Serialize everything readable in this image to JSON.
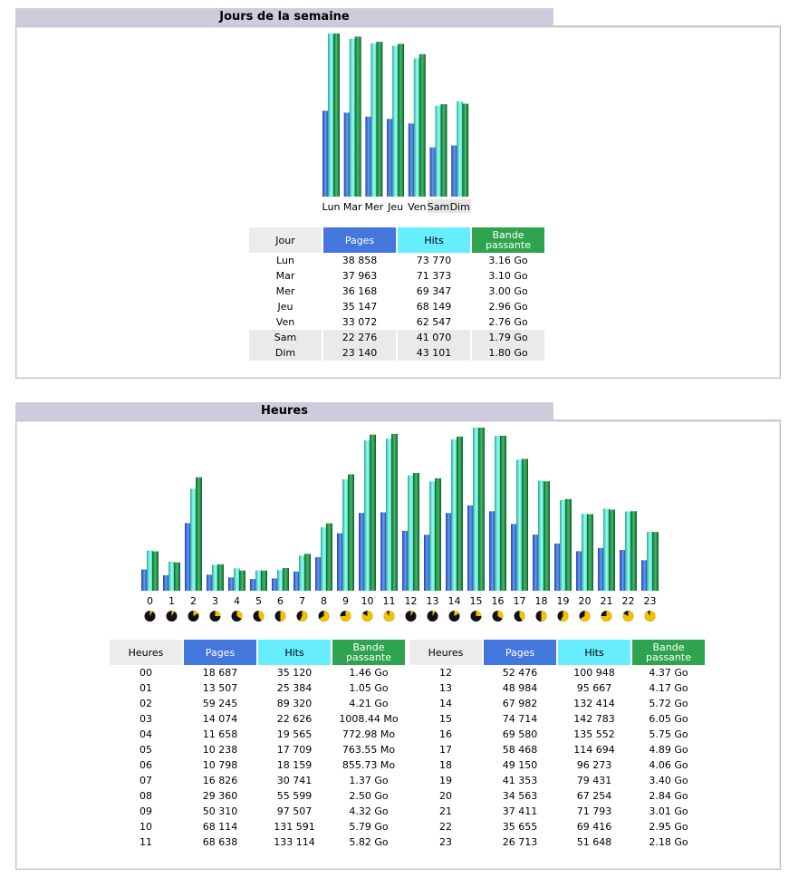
{
  "days_section": {
    "title": "Jours de la semaine",
    "headers": {
      "label": "Jour",
      "pages": "Pages",
      "hits": "Hits",
      "bw": "Bande passante"
    },
    "rows": [
      {
        "label": "Lun",
        "pages": "38 858",
        "hits": "73 770",
        "bw": "3.16 Go",
        "weekend": false
      },
      {
        "label": "Mar",
        "pages": "37 963",
        "hits": "71 373",
        "bw": "3.10 Go",
        "weekend": false
      },
      {
        "label": "Mer",
        "pages": "36 168",
        "hits": "69 347",
        "bw": "3.00 Go",
        "weekend": false
      },
      {
        "label": "Jeu",
        "pages": "35 147",
        "hits": "68 149",
        "bw": "2.96 Go",
        "weekend": false
      },
      {
        "label": "Ven",
        "pages": "33 072",
        "hits": "62 547",
        "bw": "2.76 Go",
        "weekend": false
      },
      {
        "label": "Sam",
        "pages": "22 276",
        "hits": "41 070",
        "bw": "1.79 Go",
        "weekend": true
      },
      {
        "label": "Dim",
        "pages": "23 140",
        "hits": "43 101",
        "bw": "1.80 Go",
        "weekend": true
      }
    ]
  },
  "hours_section": {
    "title": "Heures",
    "headers": {
      "label": "Heures",
      "pages": "Pages",
      "hits": "Hits",
      "bw": "Bande passante"
    },
    "rows_left": [
      {
        "label": "00",
        "pages": "18 687",
        "hits": "35 120",
        "bw": "1.46 Go"
      },
      {
        "label": "01",
        "pages": "13 507",
        "hits": "25 384",
        "bw": "1.05 Go"
      },
      {
        "label": "02",
        "pages": "59 245",
        "hits": "89 320",
        "bw": "4.21 Go"
      },
      {
        "label": "03",
        "pages": "14 074",
        "hits": "22 626",
        "bw": "1008.44 Mo"
      },
      {
        "label": "04",
        "pages": "11 658",
        "hits": "19 565",
        "bw": "772.98 Mo"
      },
      {
        "label": "05",
        "pages": "10 238",
        "hits": "17 709",
        "bw": "763.55 Mo"
      },
      {
        "label": "06",
        "pages": "10 798",
        "hits": "18 159",
        "bw": "855.73 Mo"
      },
      {
        "label": "07",
        "pages": "16 826",
        "hits": "30 741",
        "bw": "1.37 Go"
      },
      {
        "label": "08",
        "pages": "29 360",
        "hits": "55 599",
        "bw": "2.50 Go"
      },
      {
        "label": "09",
        "pages": "50 310",
        "hits": "97 507",
        "bw": "4.32 Go"
      },
      {
        "label": "10",
        "pages": "68 114",
        "hits": "131 591",
        "bw": "5.79 Go"
      },
      {
        "label": "11",
        "pages": "68 638",
        "hits": "133 114",
        "bw": "5.82 Go"
      }
    ],
    "rows_right": [
      {
        "label": "12",
        "pages": "52 476",
        "hits": "100 948",
        "bw": "4.37 Go"
      },
      {
        "label": "13",
        "pages": "48 984",
        "hits": "95 667",
        "bw": "4.17 Go"
      },
      {
        "label": "14",
        "pages": "67 982",
        "hits": "132 414",
        "bw": "5.72 Go"
      },
      {
        "label": "15",
        "pages": "74 714",
        "hits": "142 783",
        "bw": "6.05 Go"
      },
      {
        "label": "16",
        "pages": "69 580",
        "hits": "135 552",
        "bw": "5.75 Go"
      },
      {
        "label": "17",
        "pages": "58 468",
        "hits": "114 694",
        "bw": "4.89 Go"
      },
      {
        "label": "18",
        "pages": "49 150",
        "hits": "96 273",
        "bw": "4.06 Go"
      },
      {
        "label": "19",
        "pages": "41 353",
        "hits": "79 431",
        "bw": "3.40 Go"
      },
      {
        "label": "20",
        "pages": "34 563",
        "hits": "67 254",
        "bw": "2.84 Go"
      },
      {
        "label": "21",
        "pages": "37 411",
        "hits": "71 793",
        "bw": "3.01 Go"
      },
      {
        "label": "22",
        "pages": "35 655",
        "hits": "69 416",
        "bw": "2.95 Go"
      },
      {
        "label": "23",
        "pages": "26 713",
        "hits": "51 648",
        "bw": "2.18 Go"
      }
    ]
  },
  "chart_data": [
    {
      "type": "bar",
      "categories": [
        "Lun",
        "Mar",
        "Mer",
        "Jeu",
        "Ven",
        "Sam",
        "Dim"
      ],
      "series": [
        {
          "name": "Pages",
          "values": [
            38858,
            37963,
            36168,
            35147,
            33072,
            22276,
            23140
          ]
        },
        {
          "name": "Hits",
          "values": [
            73770,
            71373,
            69347,
            68149,
            62547,
            41070,
            43101
          ]
        },
        {
          "name": "Bande passante",
          "values": [
            3.16,
            3.1,
            3.0,
            2.96,
            2.76,
            1.79,
            1.8
          ]
        }
      ],
      "highlight_categories": [
        "Sam",
        "Dim"
      ]
    },
    {
      "type": "bar",
      "categories": [
        "0",
        "1",
        "2",
        "3",
        "4",
        "5",
        "6",
        "7",
        "8",
        "9",
        "10",
        "11",
        "12",
        "13",
        "14",
        "15",
        "16",
        "17",
        "18",
        "19",
        "20",
        "21",
        "22",
        "23"
      ],
      "series": [
        {
          "name": "Pages",
          "values": [
            18687,
            13507,
            59245,
            14074,
            11658,
            10238,
            10798,
            16826,
            29360,
            50310,
            68114,
            68638,
            52476,
            48984,
            67982,
            74714,
            69580,
            58468,
            49150,
            41353,
            34563,
            37411,
            35655,
            26713
          ]
        },
        {
          "name": "Hits",
          "values": [
            35120,
            25384,
            89320,
            22626,
            19565,
            17709,
            18159,
            30741,
            55599,
            97507,
            131591,
            133114,
            100948,
            95667,
            132414,
            142783,
            135552,
            114694,
            96273,
            79431,
            67254,
            71793,
            69416,
            51648
          ]
        },
        {
          "name": "Bande passante",
          "values": [
            1.46,
            1.05,
            4.21,
            0.98,
            0.75,
            0.75,
            0.84,
            1.37,
            2.5,
            4.32,
            5.79,
            5.82,
            4.37,
            4.17,
            5.72,
            6.05,
            5.75,
            4.89,
            4.06,
            3.4,
            2.84,
            3.01,
            2.95,
            2.18
          ]
        }
      ]
    }
  ],
  "colors": {
    "pages": "#4477dd",
    "hits": "#44ddcc",
    "bandwidth": "#2ea44f",
    "section_bar": "#ccccdd"
  }
}
